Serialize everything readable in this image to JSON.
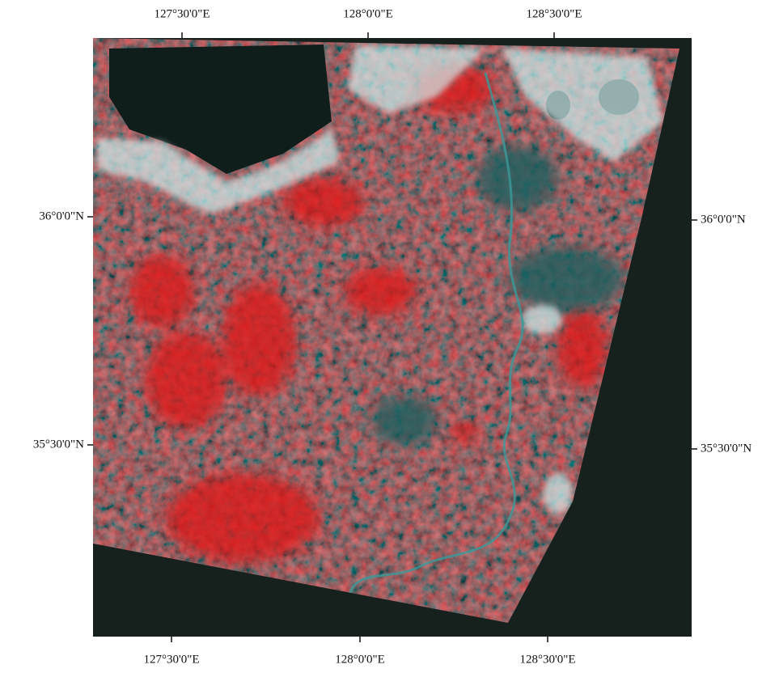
{
  "labels": {
    "top": [
      "127°30'0\"E",
      "128°0'0\"E",
      "128°30'0\"E"
    ],
    "bottom": [
      "127°30'0\"E",
      "128°0'0\"E",
      "128°30'0\"E"
    ],
    "left": [
      "36°0'0\"N",
      "35°30'0\"N"
    ],
    "right": [
      "36°0'0\"N",
      "35°30'0\"N"
    ]
  }
}
